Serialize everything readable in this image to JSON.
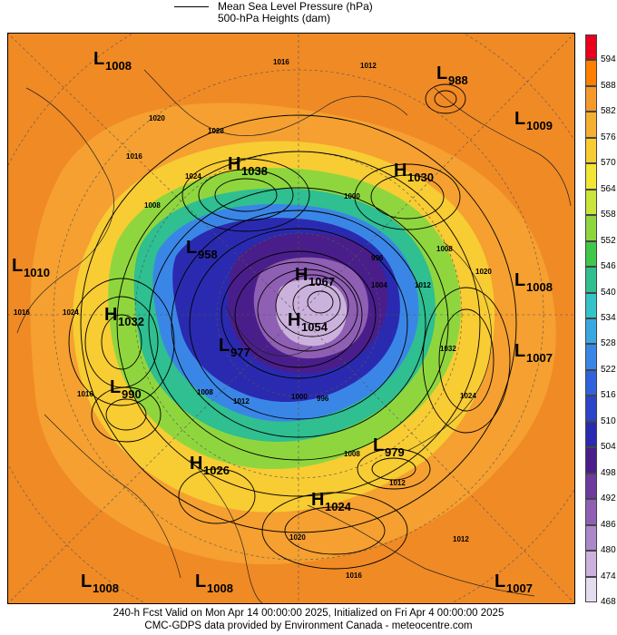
{
  "legend": {
    "line1": "Mean Sea Level Pressure (hPa)",
    "line2": "500-hPa Heights (dam)"
  },
  "centers": [
    {
      "type": "L",
      "value": "1008",
      "pos": "upper-left"
    },
    {
      "type": "L",
      "value": "988",
      "pos": "top-right"
    },
    {
      "type": "L",
      "value": "1009",
      "pos": "right-upper"
    },
    {
      "type": "H",
      "value": "1038",
      "pos": "upper-center-left"
    },
    {
      "type": "H",
      "value": "1030",
      "pos": "upper-center-right"
    },
    {
      "type": "L",
      "value": "1010",
      "pos": "left-middle"
    },
    {
      "type": "L",
      "value": "958",
      "pos": "center-left-upper"
    },
    {
      "type": "H",
      "value": "1067",
      "pos": "center"
    },
    {
      "type": "H",
      "value": "1032",
      "pos": "left"
    },
    {
      "type": "L",
      "value": "1008",
      "pos": "right-middle"
    },
    {
      "type": "H",
      "value": "1054",
      "pos": "center-right"
    },
    {
      "type": "L",
      "value": "977",
      "pos": "center-left-lower"
    },
    {
      "type": "L",
      "value": "1007",
      "pos": "right-lower"
    },
    {
      "type": "L",
      "value": "990",
      "pos": "left-lower"
    },
    {
      "type": "L",
      "value": "979",
      "pos": "lower-right"
    },
    {
      "type": "H",
      "value": "1026",
      "pos": "lower-left"
    },
    {
      "type": "H",
      "value": "1024",
      "pos": "lower-center"
    },
    {
      "type": "L",
      "value": "1008",
      "pos": "bottom-left"
    },
    {
      "type": "L",
      "value": "1008",
      "pos": "bottom-center-left"
    },
    {
      "type": "L",
      "value": "1007",
      "pos": "bottom-right"
    }
  ],
  "isobar_labels": [
    "1016",
    "1012",
    "1020",
    "1028",
    "1024",
    "1016",
    "1008",
    "1000",
    "996",
    "1008",
    "1020",
    "1024",
    "1016",
    "1012",
    "1004",
    "1000",
    "996",
    "1008",
    "1012",
    "1032",
    "1024",
    "1016",
    "1012",
    "1008",
    "1016",
    "1012",
    "1020"
  ],
  "colorbar": {
    "labels": [
      "594",
      "588",
      "582",
      "576",
      "570",
      "564",
      "558",
      "552",
      "546",
      "540",
      "534",
      "528",
      "522",
      "516",
      "510",
      "504",
      "498",
      "492",
      "486",
      "480",
      "474",
      "468"
    ],
    "colors": [
      "#e8001c",
      "#ff8000",
      "#f59a2a",
      "#f5b032",
      "#f8cc33",
      "#f2e634",
      "#c9e43a",
      "#8fd63e",
      "#3fc84a",
      "#2fbf90",
      "#34c4c8",
      "#3aa8e0",
      "#3a86e6",
      "#2f62dc",
      "#2b44c8",
      "#2a2ab0",
      "#4a1e8a",
      "#6e3a9e",
      "#8f5fb4",
      "#ad88c8",
      "#cbb2dc",
      "#e6dcef"
    ]
  },
  "footer": {
    "line1": "240-h Fcst Valid on Mon Apr 14 00:00:00 2025, Initialized on Fri Apr  4 00:00:00 2025",
    "line2": "CMC-GDPS data provided by Environment Canada - meteocentre.com"
  }
}
